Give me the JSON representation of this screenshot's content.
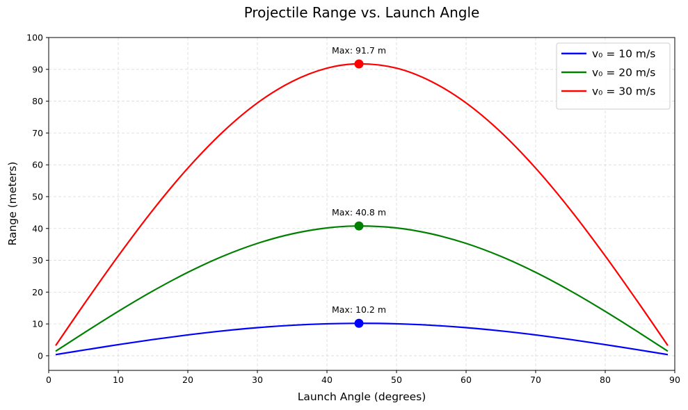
{
  "chart_data": {
    "type": "line",
    "title": "Projectile Range vs. Launch Angle",
    "xlabel": "Launch Angle (degrees)",
    "ylabel": "Range (meters)",
    "xlim": [
      0,
      90
    ],
    "ylim": [
      -4.6,
      100
    ],
    "xticks": [
      0,
      10,
      20,
      30,
      40,
      50,
      60,
      70,
      80,
      90
    ],
    "yticks": [
      0,
      10,
      20,
      30,
      40,
      50,
      60,
      70,
      80,
      90,
      100
    ],
    "grid": true,
    "legend_position": "top-right",
    "x": [
      1,
      5,
      10,
      15,
      20,
      25,
      30,
      35,
      40,
      44.6,
      50,
      55,
      60,
      65,
      70,
      75,
      80,
      85,
      89
    ],
    "series": [
      {
        "name": "v₀ = 10 m/s",
        "color": "#0000ff",
        "values": [
          0.36,
          1.77,
          3.49,
          5.1,
          6.55,
          7.81,
          8.83,
          9.58,
          10.04,
          10.19,
          10.04,
          9.58,
          8.83,
          7.81,
          6.55,
          5.1,
          3.49,
          1.77,
          0.36
        ],
        "max": {
          "x": 44.6,
          "y": 10.2,
          "label": "Max: 10.2 m"
        }
      },
      {
        "name": "v₀ = 20 m/s",
        "color": "#008000",
        "values": [
          1.42,
          7.08,
          13.95,
          20.39,
          26.21,
          31.24,
          35.31,
          38.31,
          40.17,
          40.77,
          40.17,
          38.31,
          35.31,
          31.24,
          26.21,
          20.39,
          13.95,
          7.08,
          1.42
        ],
        "max": {
          "x": 44.6,
          "y": 40.8,
          "label": "Max: 40.8 m"
        }
      },
      {
        "name": "v₀ = 30 m/s",
        "color": "#ff0000",
        "values": [
          3.2,
          15.94,
          31.38,
          45.87,
          58.96,
          70.27,
          79.45,
          86.19,
          90.37,
          91.74,
          90.37,
          86.19,
          79.45,
          70.27,
          58.96,
          45.87,
          31.38,
          15.94,
          3.2
        ],
        "max": {
          "x": 44.6,
          "y": 91.7,
          "label": "Max: 91.7 m"
        }
      }
    ]
  }
}
